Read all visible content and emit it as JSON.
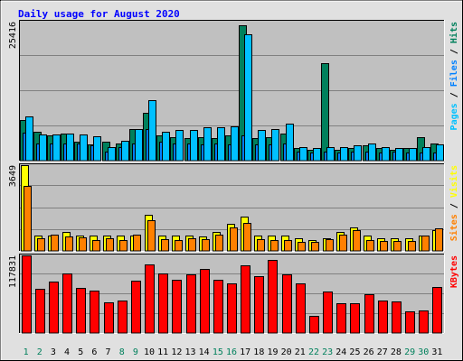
{
  "chart_data": [
    {
      "type": "bar",
      "title": "Daily usage for August 2020",
      "categories": [
        "1",
        "2",
        "3",
        "4",
        "5",
        "6",
        "7",
        "8",
        "9",
        "10",
        "11",
        "12",
        "13",
        "14",
        "15",
        "16",
        "17",
        "18",
        "19",
        "20",
        "21",
        "22",
        "23",
        "24",
        "25",
        "26",
        "27",
        "28",
        "29",
        "30",
        "31"
      ],
      "weekend_days": [
        "1",
        "2",
        "8",
        "9",
        "15",
        "16",
        "22",
        "23",
        "29",
        "30"
      ],
      "ylabel": [
        "Pages",
        "Files",
        "Hits"
      ],
      "ymax_label": "25416",
      "ylim": [
        0,
        25416
      ],
      "grid": true,
      "series": [
        {
          "name": "Hits",
          "color": "#00805c",
          "values": [
            7400,
            5350,
            4550,
            5000,
            3450,
            2900,
            3450,
            3100,
            5800,
            8800,
            4550,
            4350,
            4150,
            4350,
            4150,
            4550,
            24750,
            4150,
            4350,
            5000,
            2300,
            1950,
            17850,
            1950,
            2300,
            2750,
            2300,
            1950,
            2300,
            4350,
            3100
          ]
        },
        {
          "name": "Files",
          "color": "#0080ff",
          "values": [
            5150,
            3100,
            3100,
            3100,
            3100,
            2750,
            1700,
            2500,
            3100,
            5700,
            3450,
            3100,
            3100,
            3000,
            3100,
            3000,
            4550,
            2950,
            2950,
            3100,
            1700,
            1500,
            1700,
            1500,
            1700,
            1700,
            1500,
            1700,
            1500,
            1500,
            1500
          ]
        },
        {
          "name": "Pages",
          "color": "#00c0ff",
          "values": [
            8150,
            4750,
            4750,
            4950,
            4750,
            4450,
            2550,
            3600,
            5800,
            11050,
            5350,
            5600,
            5600,
            6100,
            6100,
            6350,
            23050,
            5600,
            5800,
            6800,
            2550,
            2300,
            2550,
            2550,
            2750,
            3100,
            2550,
            2300,
            2300,
            2550,
            2950
          ]
        }
      ]
    },
    {
      "type": "bar",
      "ylabel": [
        "Sites",
        "Visits"
      ],
      "ymax_label": "3649",
      "ylim": [
        0,
        3649
      ],
      "grid": true,
      "series": [
        {
          "name": "Visits",
          "color": "#ffff00",
          "values": [
            3649,
            650,
            650,
            800,
            650,
            650,
            650,
            650,
            650,
            1550,
            650,
            650,
            650,
            600,
            800,
            1150,
            1450,
            650,
            650,
            650,
            550,
            450,
            550,
            800,
            1000,
            650,
            550,
            550,
            550,
            650,
            900
          ]
        },
        {
          "name": "Sites",
          "color": "#ff8000",
          "values": [
            2750,
            530,
            700,
            600,
            580,
            450,
            530,
            460,
            680,
            1300,
            500,
            470,
            520,
            500,
            700,
            1000,
            1200,
            500,
            480,
            480,
            400,
            400,
            500,
            700,
            900,
            450,
            430,
            420,
            430,
            650,
            950
          ]
        }
      ]
    },
    {
      "type": "bar",
      "ylabel": [
        "KBytes"
      ],
      "ymax_label": "117831",
      "ylim": [
        0,
        117831
      ],
      "grid": true,
      "series": [
        {
          "name": "KBytes",
          "color": "#ff0000",
          "values": [
            117831,
            67500,
            78500,
            90000,
            68500,
            64500,
            46000,
            50000,
            80000,
            104000,
            90500,
            81500,
            89500,
            97500,
            80500,
            75500,
            102500,
            87000,
            111500,
            89000,
            75000,
            26000,
            63500,
            45500,
            45000,
            59500,
            49500,
            48000,
            33500,
            34500,
            70000
          ]
        }
      ]
    }
  ]
}
